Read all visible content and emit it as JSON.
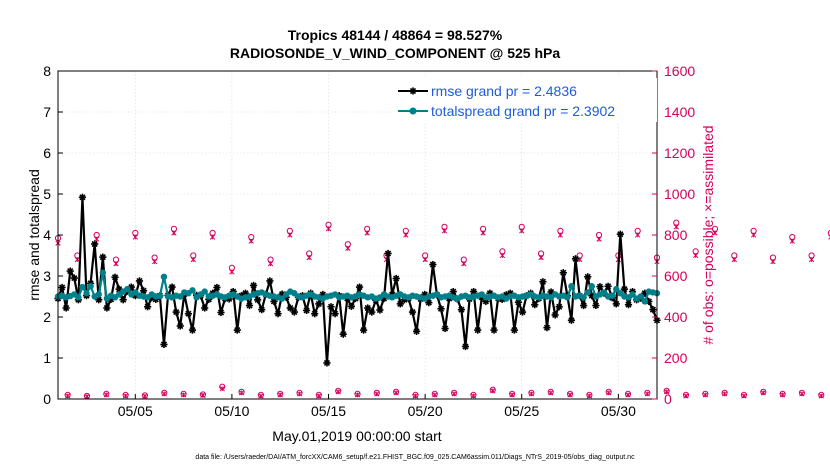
{
  "chart_data": {
    "type": "line",
    "title_line1": "Tropics 48144 / 48864 = 98.527%",
    "title_line2": "RADIOSONDE_V_WIND_COMPONENT @ 525 hPa",
    "xlabel": "May.01,2019 00:00:00 start",
    "ylabel_left": "rmse and totalspread",
    "ylabel_right": "# of obs: o=possible; ×=assimilated",
    "xlim": [
      1.0,
      32.0
    ],
    "ylim_left": [
      0,
      8
    ],
    "ylim_right": [
      0,
      1600
    ],
    "left_ticks": [
      "0",
      "1",
      "2",
      "3",
      "4",
      "5",
      "6",
      "7",
      "8"
    ],
    "right_ticks": [
      "0",
      "200",
      "400",
      "600",
      "800",
      "1000",
      "1200",
      "1400",
      "1600"
    ],
    "x_tick_positions": [
      5,
      10,
      15,
      20,
      25,
      30
    ],
    "x_tick_labels": [
      "05/05",
      "05/10",
      "05/15",
      "05/20",
      "05/25",
      "05/30"
    ],
    "footer": "data file: /Users/raeder/DAI/ATM_forcXX/CAM6_setup/f.e21.FHIST_BGC.f09_025.CAM6assim.011/Diags_NTrS_2019-05/obs_diag_output.nc",
    "colors": {
      "rmse": "#000000",
      "spread": "#00808a",
      "obs": "#d6005c",
      "legend_text": "#1f5bdc"
    },
    "series": [
      {
        "name": "rmse grand pr = 2.4836",
        "values": [
          2.45,
          2.72,
          2.22,
          3.12,
          2.95,
          2.42,
          4.92,
          2.52,
          2.82,
          3.78,
          2.42,
          3.46,
          2.22,
          2.43,
          2.97,
          2.68,
          2.42,
          2.63,
          2.73,
          2.52,
          2.88,
          2.64,
          2.25,
          2.47,
          2.43,
          2.52,
          1.33,
          2.53,
          2.73,
          2.12,
          1.78,
          2.56,
          2.08,
          1.68,
          2.53,
          2.52,
          2.22,
          2.43,
          2.58,
          2.72,
          2.11,
          2.45,
          2.44,
          2.62,
          1.68,
          2.52,
          2.58,
          2.28,
          2.77,
          2.42,
          2.18,
          2.55,
          2.88,
          2.38,
          2.08,
          2.56,
          2.48,
          2.22,
          2.12,
          2.48,
          2.52,
          2.16,
          2.58,
          2.08,
          2.32,
          2.55,
          0.88,
          2.25,
          2.08,
          2.52,
          1.58,
          2.45,
          2.26,
          2.45,
          2.73,
          1.68,
          2.22,
          2.12,
          2.41,
          2.17,
          2.45,
          3.55,
          2.55,
          2.94,
          2.32,
          2.42,
          2.45,
          2.12,
          1.65,
          2.44,
          2.55,
          2.35,
          3.28,
          2.54,
          2.2,
          1.72,
          2.45,
          2.62,
          2.44,
          2.18,
          1.28,
          2.44,
          2.62,
          1.68,
          2.48,
          2.38,
          2.58,
          1.68,
          2.46,
          2.43,
          2.54,
          2.58,
          1.68,
          2.36,
          2.12,
          2.52,
          2.58,
          2.3,
          2.45,
          2.86,
          1.74,
          2.61,
          2.05,
          2.25,
          3.08,
          2.52,
          1.92,
          3.42,
          2.52,
          2.28,
          2.98,
          2.52,
          2.28,
          2.74,
          2.58,
          2.75,
          2.47,
          2.32,
          4.02,
          2.68,
          2.3,
          2.62,
          2.42,
          2.46,
          2.58,
          2.38,
          2.18,
          1.92
        ]
      },
      {
        "name": "totalspread grand pr = 2.3902",
        "values": [
          2.5,
          2.52,
          2.48,
          2.51,
          2.55,
          2.48,
          2.73,
          2.58,
          2.75,
          2.5,
          2.55,
          3.08,
          2.45,
          2.52,
          2.48,
          2.55,
          2.62,
          2.68,
          2.55,
          2.6,
          2.52,
          2.5,
          2.48,
          2.55,
          2.5,
          2.51,
          2.98,
          2.5,
          2.48,
          2.52,
          2.5,
          2.6,
          2.58,
          2.65,
          2.48,
          2.55,
          2.62,
          2.5,
          2.52,
          2.55,
          2.5,
          2.48,
          2.52,
          2.55,
          2.5,
          2.45,
          2.48,
          2.5,
          2.55,
          2.58,
          2.6,
          2.55,
          2.52,
          2.5,
          2.48,
          2.45,
          2.55,
          2.62,
          2.58,
          2.5,
          2.48,
          2.52,
          2.55,
          2.5,
          2.48,
          2.45,
          2.5,
          2.52,
          2.55,
          2.48,
          2.5,
          2.52,
          2.48,
          2.5,
          2.55,
          2.52,
          2.48,
          2.5,
          2.45,
          2.48,
          2.55,
          2.5,
          2.48,
          2.52,
          2.55,
          2.5,
          2.48,
          2.52,
          2.5,
          2.48,
          2.45,
          2.5,
          2.52,
          2.55,
          2.48,
          2.5,
          2.52,
          2.48,
          2.45,
          2.5,
          2.52,
          2.48,
          2.5,
          2.52,
          2.55,
          2.48,
          2.5,
          2.52,
          2.48,
          2.5,
          2.45,
          2.5,
          2.52,
          2.48,
          2.5,
          2.52,
          2.55,
          2.5,
          2.48,
          2.52,
          2.5,
          2.48,
          2.55,
          2.5,
          2.52,
          2.48,
          2.75,
          2.5,
          2.52,
          2.48,
          2.6,
          2.75,
          2.5,
          2.55,
          2.6,
          2.5,
          2.52,
          2.68,
          2.58,
          2.5,
          2.48,
          2.55,
          2.45,
          2.5,
          2.38,
          2.62,
          2.6,
          2.58
        ]
      }
    ],
    "possible_obs_step": 0.5,
    "possible_obs": [
      785,
      20,
      700,
      15,
      800,
      25,
      680,
      20,
      810,
      18,
      690,
      30,
      830,
      25,
      700,
      22,
      810,
      60,
      640,
      35,
      790,
      20,
      680,
      25,
      820,
      30,
      710,
      20,
      850,
      40,
      755,
      25,
      830,
      30,
      700,
      35,
      820,
      20,
      700,
      25,
      840,
      30,
      680,
      20,
      830,
      45,
      720,
      25,
      840,
      30,
      710,
      35,
      820,
      25,
      700,
      20,
      800,
      35,
      700,
      25,
      820,
      30,
      690,
      40,
      860,
      20,
      720,
      25,
      830,
      30,
      700,
      20,
      820,
      35,
      690,
      25,
      790,
      30,
      700,
      20,
      810,
      25,
      710,
      30,
      840,
      20,
      720,
      25,
      850,
      30,
      700,
      20,
      840,
      25,
      720,
      40,
      820,
      30,
      690,
      25,
      790,
      20,
      660,
      40,
      800,
      30
    ],
    "assimilated_obs": [
      760,
      15,
      680,
      12,
      780,
      20,
      660,
      15,
      790,
      14,
      670,
      25,
      810,
      20,
      680,
      18,
      790,
      50,
      620,
      30,
      770,
      15,
      660,
      20,
      800,
      25,
      690,
      15,
      830,
      35,
      735,
      20,
      810,
      25,
      680,
      30,
      800,
      15,
      680,
      20,
      820,
      25,
      660,
      15,
      810,
      40,
      700,
      20,
      820,
      25,
      690,
      30,
      800,
      20,
      680,
      15,
      780,
      30,
      680,
      20,
      800,
      25,
      670,
      35,
      840,
      15,
      700,
      20,
      810,
      25,
      680,
      15,
      800,
      30,
      670,
      20,
      770,
      25,
      680,
      15,
      790,
      20,
      690,
      25,
      820,
      15,
      700,
      20,
      830,
      25,
      680,
      15,
      820,
      20,
      700,
      35,
      800,
      25,
      670,
      20,
      770,
      15,
      640,
      35,
      780,
      25
    ]
  }
}
